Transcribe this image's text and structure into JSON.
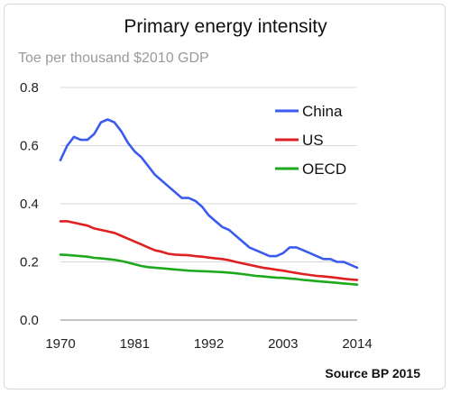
{
  "chart_data": {
    "type": "line",
    "title": "Primary energy intensity",
    "subtitle": "Toe per thousand $2010 GDP",
    "source": "Source BP 2015",
    "xlabel": "",
    "ylabel": "",
    "xlim": [
      1970,
      2014
    ],
    "ylim": [
      0,
      0.8
    ],
    "xticks": [
      "1970",
      "1981",
      "1992",
      "2003",
      "2014"
    ],
    "yticks": [
      "0.0",
      "0.2",
      "0.4",
      "0.6",
      "0.8"
    ],
    "grid": true,
    "legend_position": "top-right",
    "x": [
      1970,
      1971,
      1972,
      1973,
      1974,
      1975,
      1976,
      1977,
      1978,
      1979,
      1980,
      1981,
      1982,
      1983,
      1984,
      1985,
      1986,
      1987,
      1988,
      1989,
      1990,
      1991,
      1992,
      1993,
      1994,
      1995,
      1996,
      1997,
      1998,
      1999,
      2000,
      2001,
      2002,
      2003,
      2004,
      2005,
      2006,
      2007,
      2008,
      2009,
      2010,
      2011,
      2012,
      2013,
      2014
    ],
    "series": [
      {
        "name": "China",
        "color": "#3b5bf0",
        "values": [
          0.55,
          0.6,
          0.63,
          0.62,
          0.62,
          0.64,
          0.68,
          0.69,
          0.68,
          0.65,
          0.61,
          0.58,
          0.56,
          0.53,
          0.5,
          0.48,
          0.46,
          0.44,
          0.42,
          0.42,
          0.41,
          0.39,
          0.36,
          0.34,
          0.32,
          0.31,
          0.29,
          0.27,
          0.25,
          0.24,
          0.23,
          0.22,
          0.22,
          0.23,
          0.25,
          0.25,
          0.24,
          0.23,
          0.22,
          0.21,
          0.21,
          0.2,
          0.2,
          0.19,
          0.18
        ]
      },
      {
        "name": "US",
        "color": "#e02020",
        "values": [
          0.34,
          0.34,
          0.335,
          0.33,
          0.325,
          0.315,
          0.31,
          0.305,
          0.3,
          0.29,
          0.28,
          0.27,
          0.26,
          0.25,
          0.24,
          0.235,
          0.228,
          0.225,
          0.224,
          0.223,
          0.22,
          0.218,
          0.215,
          0.212,
          0.21,
          0.206,
          0.2,
          0.195,
          0.19,
          0.185,
          0.18,
          0.177,
          0.173,
          0.17,
          0.166,
          0.162,
          0.158,
          0.155,
          0.152,
          0.15,
          0.148,
          0.145,
          0.142,
          0.14,
          0.138
        ]
      },
      {
        "name": "OECD",
        "color": "#1ea81e",
        "values": [
          0.225,
          0.224,
          0.222,
          0.22,
          0.218,
          0.214,
          0.212,
          0.21,
          0.207,
          0.203,
          0.198,
          0.192,
          0.186,
          0.182,
          0.18,
          0.178,
          0.176,
          0.174,
          0.172,
          0.17,
          0.169,
          0.168,
          0.167,
          0.166,
          0.165,
          0.163,
          0.161,
          0.158,
          0.155,
          0.152,
          0.15,
          0.148,
          0.146,
          0.145,
          0.143,
          0.141,
          0.138,
          0.136,
          0.134,
          0.132,
          0.13,
          0.128,
          0.126,
          0.124,
          0.122
        ]
      }
    ]
  }
}
